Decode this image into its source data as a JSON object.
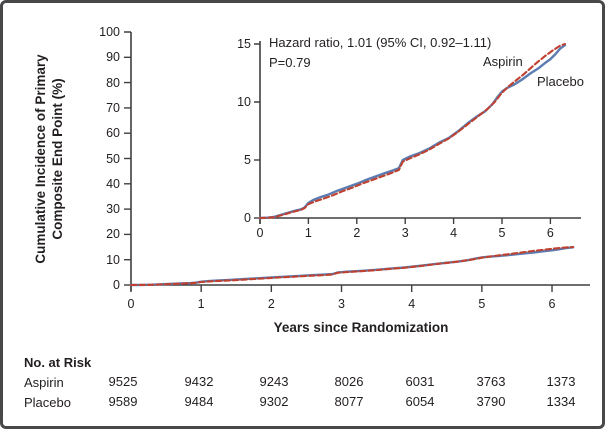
{
  "figure": {
    "ylabel_lines": [
      "Cumulative Incidence of Primary",
      "Composite End Point (%)"
    ]
  },
  "colors": {
    "aspirin": "#bf4130",
    "placebo": "#5b7cb1",
    "axis": "#3f3f41",
    "text": "#231f20",
    "border": "#48484a"
  },
  "chart_data": [
    {
      "type": "line",
      "panel": "main",
      "xlabel": "Years since Randomization",
      "ylabel": "Cumulative Incidence of Primary Composite End Point (%)",
      "xlim": [
        0,
        6.5
      ],
      "ylim": [
        0,
        100
      ],
      "xticks": [
        0,
        1,
        2,
        3,
        4,
        5,
        6
      ],
      "yticks": [
        0,
        10,
        20,
        30,
        40,
        50,
        60,
        70,
        80,
        90,
        100
      ],
      "grid": false,
      "series": [
        {
          "name": "Placebo",
          "color": "#5b7cb1",
          "line_style": "solid",
          "points": [
            [
              0,
              0
            ],
            [
              0.15,
              0.03
            ],
            [
              0.3,
              0.1
            ],
            [
              0.5,
              0.35
            ],
            [
              0.7,
              0.6
            ],
            [
              0.85,
              0.75
            ],
            [
              0.92,
              0.9
            ],
            [
              1.0,
              1.3
            ],
            [
              1.1,
              1.55
            ],
            [
              1.25,
              1.8
            ],
            [
              1.4,
              2.0
            ],
            [
              1.6,
              2.35
            ],
            [
              1.8,
              2.65
            ],
            [
              2.0,
              2.95
            ],
            [
              2.2,
              3.3
            ],
            [
              2.4,
              3.6
            ],
            [
              2.6,
              3.9
            ],
            [
              2.75,
              4.1
            ],
            [
              2.87,
              4.3
            ],
            [
              2.95,
              5.0
            ],
            [
              3.1,
              5.3
            ],
            [
              3.3,
              5.6
            ],
            [
              3.5,
              6.0
            ],
            [
              3.7,
              6.5
            ],
            [
              3.9,
              6.9
            ],
            [
              4.1,
              7.5
            ],
            [
              4.3,
              8.2
            ],
            [
              4.5,
              8.8
            ],
            [
              4.65,
              9.2
            ],
            [
              4.8,
              9.8
            ],
            [
              4.9,
              10.4
            ],
            [
              5.0,
              10.9
            ],
            [
              5.1,
              11.2
            ],
            [
              5.25,
              11.5
            ],
            [
              5.4,
              11.9
            ],
            [
              5.6,
              12.5
            ],
            [
              5.75,
              12.9
            ],
            [
              5.9,
              13.4
            ],
            [
              6.0,
              13.7
            ],
            [
              6.1,
              14.1
            ],
            [
              6.2,
              14.6
            ],
            [
              6.3,
              14.9
            ]
          ]
        },
        {
          "name": "Aspirin",
          "color": "#bf4130",
          "line_style": "dashed",
          "points": [
            [
              0,
              0
            ],
            [
              0.15,
              0.02
            ],
            [
              0.3,
              0.08
            ],
            [
              0.5,
              0.3
            ],
            [
              0.7,
              0.55
            ],
            [
              0.85,
              0.7
            ],
            [
              0.92,
              0.85
            ],
            [
              1.0,
              1.2
            ],
            [
              1.15,
              1.45
            ],
            [
              1.3,
              1.65
            ],
            [
              1.5,
              1.95
            ],
            [
              1.7,
              2.3
            ],
            [
              1.9,
              2.6
            ],
            [
              2.1,
              2.95
            ],
            [
              2.3,
              3.25
            ],
            [
              2.5,
              3.55
            ],
            [
              2.7,
              3.85
            ],
            [
              2.87,
              4.15
            ],
            [
              2.95,
              4.85
            ],
            [
              3.1,
              5.15
            ],
            [
              3.3,
              5.5
            ],
            [
              3.5,
              5.9
            ],
            [
              3.7,
              6.4
            ],
            [
              3.9,
              6.85
            ],
            [
              4.1,
              7.45
            ],
            [
              4.3,
              8.1
            ],
            [
              4.5,
              8.75
            ],
            [
              4.7,
              9.4
            ],
            [
              4.85,
              10.0
            ],
            [
              5.0,
              10.8
            ],
            [
              5.15,
              11.4
            ],
            [
              5.3,
              11.9
            ],
            [
              5.45,
              12.4
            ],
            [
              5.6,
              12.95
            ],
            [
              5.75,
              13.5
            ],
            [
              5.9,
              14.0
            ],
            [
              6.05,
              14.45
            ],
            [
              6.2,
              14.85
            ],
            [
              6.3,
              15.0
            ]
          ]
        }
      ]
    },
    {
      "type": "line",
      "panel": "inset",
      "xlabel": "",
      "ylabel": "",
      "xlim": [
        0,
        6.6
      ],
      "ylim": [
        0,
        15
      ],
      "xticks": [
        0,
        1,
        2,
        3,
        4,
        5,
        6
      ],
      "yticks": [
        0,
        5,
        10,
        15
      ],
      "grid": false,
      "series_same_as": 0,
      "annotation": [
        "Hazard ratio, 1.01 (95% CI, 0.92–1.11)",
        "P=0.79"
      ],
      "series_labels_on_plot": [
        "Aspirin",
        "Placebo"
      ]
    }
  ],
  "risk_table": {
    "title": "No. at Risk",
    "time_points": [
      0,
      1,
      2,
      3,
      4,
      5,
      6
    ],
    "rows": [
      {
        "label": "Aspirin",
        "values": [
          "9525",
          "9432",
          "9243",
          "8026",
          "6031",
          "3763",
          "1373"
        ]
      },
      {
        "label": "Placebo",
        "values": [
          "9589",
          "9484",
          "9302",
          "8077",
          "6054",
          "3790",
          "1334"
        ]
      }
    ]
  }
}
